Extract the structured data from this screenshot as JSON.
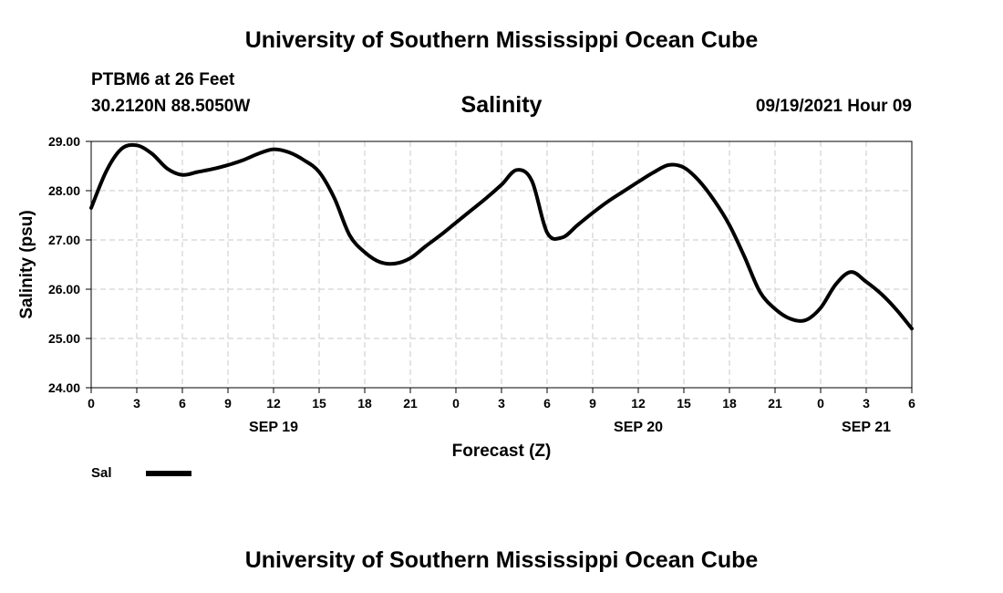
{
  "header": {
    "institution": "University of Southern Mississippi Ocean Cube",
    "station": "PTBM6 at 26 Feet",
    "coordinates": "30.2120N  88.5050W",
    "timestamp": "09/19/2021 Hour 09"
  },
  "footer": {
    "institution": "University of Southern Mississippi Ocean Cube"
  },
  "legend": {
    "label": "Sal",
    "color": "#000000"
  },
  "chart_data": {
    "type": "line",
    "title": "Salinity",
    "xlabel": "Forecast (Z)",
    "ylabel": "Salinity (psu)",
    "xlim": [
      0,
      54
    ],
    "ylim": [
      24.0,
      29.0
    ],
    "grid": true,
    "x_ticks": [
      0,
      3,
      6,
      9,
      12,
      15,
      18,
      21,
      24,
      27,
      30,
      33,
      36,
      39,
      42,
      45,
      48,
      51,
      54
    ],
    "x_tick_labels": [
      "0",
      "3",
      "6",
      "9",
      "12",
      "15",
      "18",
      "21",
      "0",
      "3",
      "6",
      "9",
      "12",
      "15",
      "18",
      "21",
      "0",
      "3",
      "6"
    ],
    "y_ticks": [
      24.0,
      25.0,
      26.0,
      27.0,
      28.0,
      29.0
    ],
    "y_tick_labels": [
      "24.00",
      "25.00",
      "26.00",
      "27.00",
      "28.00",
      "29.00"
    ],
    "date_labels": [
      {
        "x": 12,
        "label": "SEP 19"
      },
      {
        "x": 36,
        "label": "SEP 20"
      },
      {
        "x": 51,
        "label": "SEP 21"
      }
    ],
    "series": [
      {
        "name": "Sal",
        "color": "#000000",
        "x": [
          0,
          1,
          2,
          3,
          4,
          5,
          6,
          7,
          8,
          9,
          10,
          11,
          12,
          13,
          14,
          15,
          16,
          17,
          18,
          19,
          20,
          21,
          22,
          23,
          24,
          25,
          26,
          27,
          28,
          29,
          30,
          31,
          32,
          33,
          34,
          35,
          36,
          37,
          38,
          39,
          40,
          41,
          42,
          43,
          44,
          45,
          46,
          47,
          48,
          49,
          50,
          51,
          52,
          53,
          54
        ],
        "values": [
          27.65,
          28.4,
          28.85,
          28.92,
          28.75,
          28.45,
          28.32,
          28.38,
          28.44,
          28.52,
          28.62,
          28.75,
          28.84,
          28.78,
          28.62,
          28.38,
          27.85,
          27.1,
          26.75,
          26.55,
          26.52,
          26.63,
          26.87,
          27.1,
          27.35,
          27.6,
          27.85,
          28.12,
          28.42,
          28.2,
          27.15,
          27.05,
          27.3,
          27.55,
          27.78,
          27.98,
          28.18,
          28.37,
          28.52,
          28.47,
          28.2,
          27.8,
          27.3,
          26.65,
          25.95,
          25.6,
          25.4,
          25.37,
          25.62,
          26.1,
          26.35,
          26.15,
          25.9,
          25.58,
          25.2
        ]
      }
    ]
  }
}
